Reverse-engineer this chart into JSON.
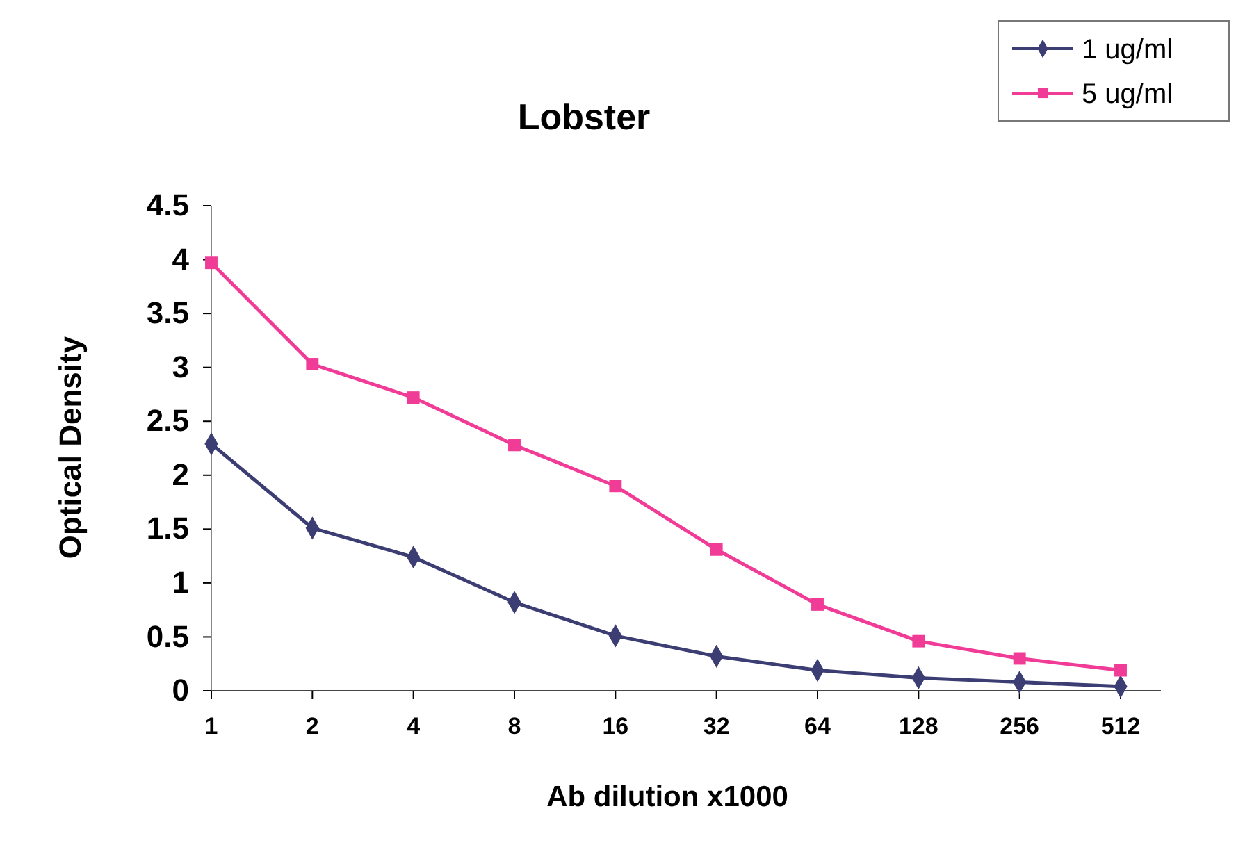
{
  "chart_data": {
    "type": "line",
    "title": "Lobster",
    "xlabel": "Ab dilution x1000",
    "ylabel": "Optical Density",
    "categories": [
      "1",
      "2",
      "4",
      "8",
      "16",
      "32",
      "64",
      "128",
      "256",
      "512"
    ],
    "series": [
      {
        "name": "1 ug/ml",
        "color": "#3b3d73",
        "marker": "diamond",
        "values": [
          2.29,
          1.51,
          1.24,
          0.82,
          0.51,
          0.32,
          0.19,
          0.12,
          0.08,
          0.04
        ]
      },
      {
        "name": "5 ug/ml",
        "color": "#f03c96",
        "marker": "square",
        "values": [
          3.97,
          3.03,
          2.72,
          2.28,
          1.9,
          1.31,
          0.8,
          0.46,
          0.3,
          0.19
        ]
      }
    ],
    "ylim": [
      0,
      4.5
    ],
    "yticks": [
      0,
      0.5,
      1,
      1.5,
      2,
      2.5,
      3,
      3.5,
      4,
      4.5
    ],
    "grid": false,
    "legend": "top right"
  }
}
